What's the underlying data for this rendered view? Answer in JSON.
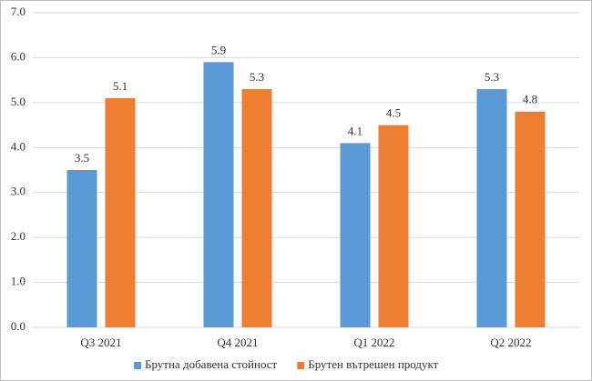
{
  "chart_data": {
    "type": "bar",
    "categories": [
      "Q3 2021",
      "Q4 2021",
      "Q1 2022",
      "Q2 2022"
    ],
    "series": [
      {
        "name": "Брутна добавена стойност",
        "color": "#5b9bd5",
        "values": [
          3.5,
          5.9,
          4.1,
          5.3
        ]
      },
      {
        "name": "Брутен вътрешен продукт",
        "color": "#ed7d31",
        "values": [
          5.1,
          5.3,
          4.5,
          4.8
        ]
      }
    ],
    "ylim": [
      0,
      7
    ],
    "yticks": [
      {
        "value": 0,
        "label": "0.0"
      },
      {
        "value": 1,
        "label": "1.0"
      },
      {
        "value": 2,
        "label": "2.0"
      },
      {
        "value": 3,
        "label": "3.0"
      },
      {
        "value": 4,
        "label": "4.0"
      },
      {
        "value": 5,
        "label": "5.0"
      },
      {
        "value": 6,
        "label": "6.0"
      },
      {
        "value": 7,
        "label": "7.0"
      }
    ],
    "grid": true,
    "legend": "bottom"
  }
}
